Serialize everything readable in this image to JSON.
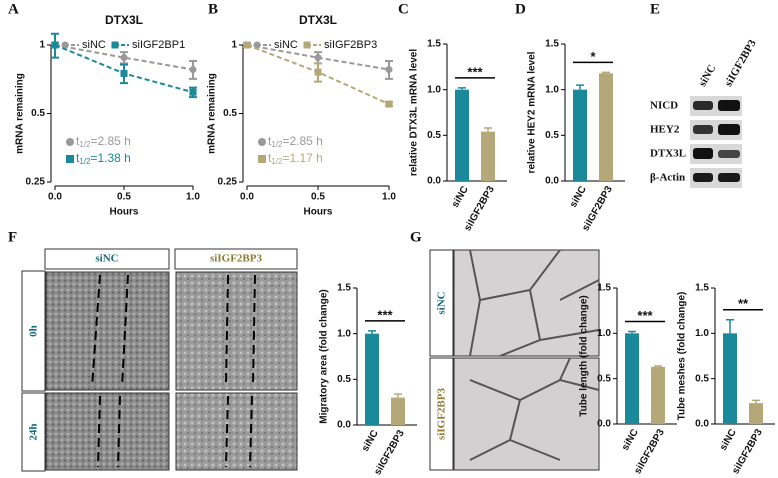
{
  "panels": [
    "A",
    "B",
    "C",
    "D",
    "E",
    "F",
    "G"
  ],
  "chart_data": [
    {
      "type": "line",
      "title": "DTX3L",
      "xlabel": "Hours",
      "ylabel": "mRNA remaining",
      "x": [
        0,
        0.5,
        1
      ],
      "xlim": [
        0,
        1
      ],
      "xticks": [
        {
          "value": 0,
          "label": "0.0"
        },
        0.5,
        {
          "value": 1,
          "label": "1.0"
        }
      ],
      "ylim": [
        0.25,
        1
      ],
      "yticks": [
        0.25,
        0.5,
        1
      ],
      "log_y": true,
      "line_style": "dashed",
      "annotation_prefix": "t",
      "annotation_sub": "1/2",
      "series": [
        {
          "name": "siNC",
          "color": "#999999",
          "marker": "circle",
          "values": [
            1,
            0.88,
            0.78
          ],
          "errors": [
            0.02,
            0.05,
            0.07
          ],
          "annotation": "=2.85 h"
        },
        {
          "name": "siIGF2BP1",
          "color": "#1a8a9a",
          "marker": "square",
          "values": [
            1,
            0.75,
            0.62
          ],
          "errors": [
            0.12,
            0.07,
            0.03
          ],
          "annotation": "=1.38 h"
        }
      ]
    },
    {
      "type": "line",
      "title": "DTX3L",
      "xlabel": "Hours",
      "ylabel": "mRNA remaining",
      "x": [
        0,
        0.5,
        1
      ],
      "xlim": [
        0,
        1
      ],
      "xticks": [
        {
          "value": 0,
          "label": "0.0"
        },
        0.5,
        {
          "value": 1,
          "label": "1.0"
        }
      ],
      "ylim": [
        0.25,
        1
      ],
      "yticks": [
        0.25,
        0.5,
        1
      ],
      "log_y": true,
      "line_style": "dashed",
      "annotation_prefix": "t",
      "annotation_sub": "1/2",
      "series": [
        {
          "name": "siNC",
          "color": "#999999",
          "marker": "circle",
          "values": [
            1,
            0.88,
            0.78
          ],
          "errors": [
            0.02,
            0.05,
            0.07
          ],
          "annotation": "=2.85 h"
        },
        {
          "name": "siIGF2BP3",
          "color": "#b5a878",
          "marker": "square",
          "values": [
            1,
            0.76,
            0.55
          ],
          "errors": [
            0.02,
            0.07,
            0.01
          ],
          "annotation": "=1.17 h"
        }
      ]
    },
    {
      "type": "bar",
      "ylabel": "relative DTX3L mRNA level",
      "categories": [
        "siNC",
        "siIGF2BP3"
      ],
      "values": [
        1,
        0.54
      ],
      "errors": [
        0.02,
        0.04
      ],
      "colors": [
        "#1a8a9a",
        "#b5a878"
      ],
      "ylim": [
        0,
        1.5
      ],
      "yticks": [
        {
          "value": 0,
          "label": "0.0"
        },
        0.5,
        {
          "value": 1,
          "label": "1.0"
        },
        1.5
      ],
      "significance": "***"
    },
    {
      "type": "bar",
      "ylabel": "relative HEY2 mRNA level",
      "categories": [
        "siNC",
        "siIGF2BP3"
      ],
      "values": [
        1,
        1.18
      ],
      "errors": [
        0.05,
        0.01
      ],
      "colors": [
        "#1a8a9a",
        "#b5a878"
      ],
      "ylim": [
        0,
        1.5
      ],
      "yticks": [
        {
          "value": 0,
          "label": "0.0"
        },
        0.5,
        {
          "value": 1,
          "label": "1.0"
        },
        1.5
      ],
      "significance": "*"
    },
    {
      "type": "bar",
      "ylabel": "Migratory area (fold change)",
      "categories": [
        "siNC",
        "siIGF2BP3"
      ],
      "values": [
        1,
        0.3
      ],
      "errors": [
        0.03,
        0.04
      ],
      "colors": [
        "#1a8a9a",
        "#b5a878"
      ],
      "ylim": [
        0,
        1.5
      ],
      "yticks": [
        {
          "value": 0,
          "label": "0.0"
        },
        0.5,
        {
          "value": 1,
          "label": "1.0"
        },
        1.5
      ],
      "significance": "***"
    },
    {
      "type": "bar",
      "ylabel": "Tube length (fold change)",
      "categories": [
        "siNC",
        "siIGF2BP3"
      ],
      "values": [
        1,
        0.63
      ],
      "errors": [
        0.02,
        0.01
      ],
      "colors": [
        "#1a8a9a",
        "#b5a878"
      ],
      "ylim": [
        0,
        1.5
      ],
      "yticks": [
        {
          "value": 0,
          "label": "0.0"
        },
        0.5,
        {
          "value": 1,
          "label": "1.0"
        },
        1.5
      ],
      "significance": "***"
    },
    {
      "type": "bar",
      "ylabel": "Tube meshes (fold change)",
      "categories": [
        "siNC",
        "siIGF2BP3"
      ],
      "values": [
        1,
        0.23
      ],
      "errors": [
        0.15,
        0.03
      ],
      "colors": [
        "#1a8a9a",
        "#b5a878"
      ],
      "ylim": [
        0,
        1.5
      ],
      "yticks": [
        {
          "value": 0,
          "label": "0.0"
        },
        0.5,
        {
          "value": 1,
          "label": "1.0"
        },
        1.5
      ],
      "significance": "**"
    }
  ],
  "blot": {
    "lanes": [
      "siNC",
      "siIGF2BP3"
    ],
    "proteins": [
      "NICD",
      "HEY2",
      "DTX3L",
      "β-Actin"
    ]
  },
  "wound": {
    "columns": [
      "siNC",
      "siIGF2BP3"
    ],
    "rows": [
      "0h",
      "24h"
    ]
  },
  "tube": {
    "rows": [
      "siNC",
      "siIGF2BP3"
    ]
  }
}
